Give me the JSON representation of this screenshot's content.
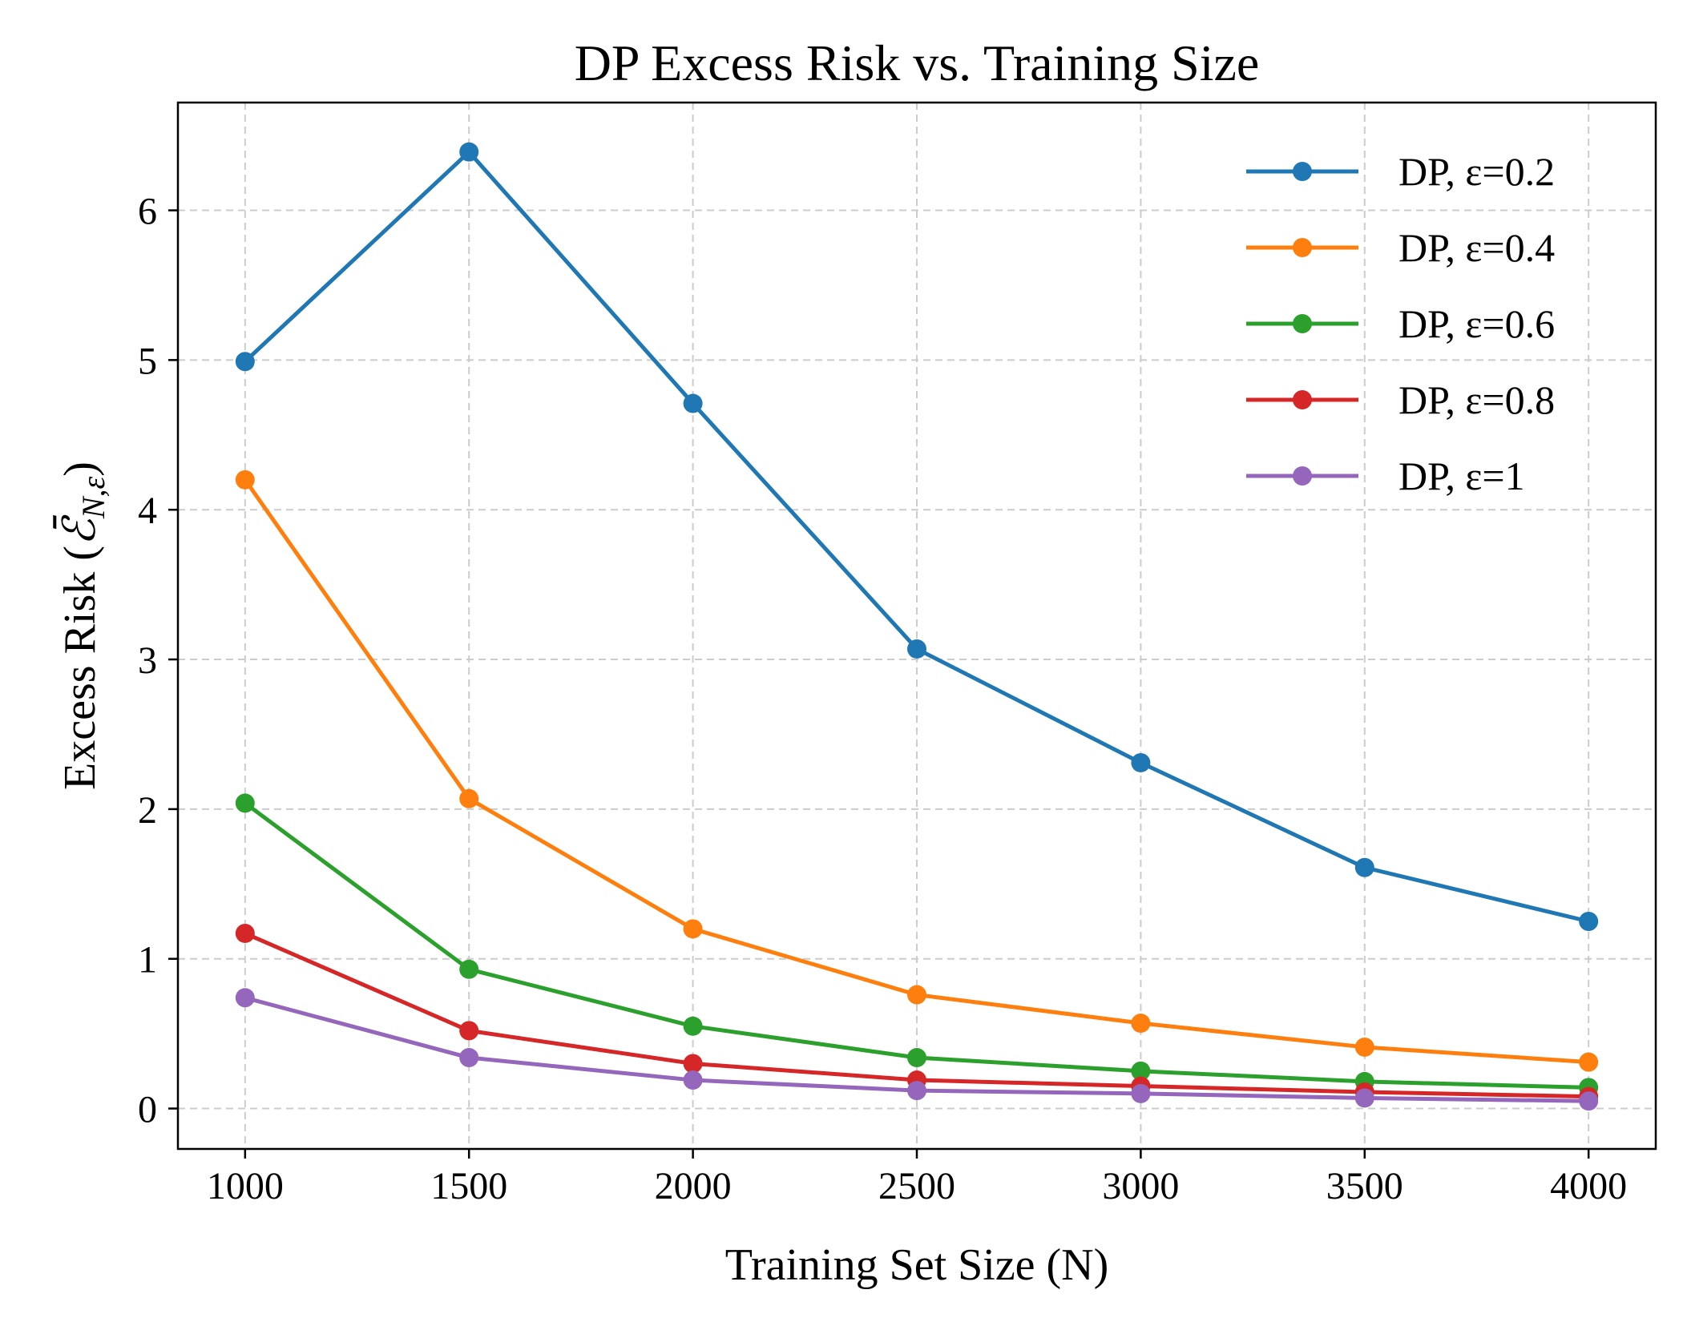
{
  "chart_data": {
    "type": "line",
    "title": "DP Excess Risk vs. Training Size",
    "xlabel": "Training Set Size (N)",
    "ylabel": "Excess Risk (",
    "ylabel_math": "ℰ̄",
    "ylabel_sub": "N,ε",
    "ylabel_close": ")",
    "x": [
      1000,
      1500,
      2000,
      2500,
      3000,
      3500,
      4000
    ],
    "xticks": [
      1000,
      1500,
      2000,
      2500,
      3000,
      3500,
      4000
    ],
    "yticks": [
      0,
      1,
      2,
      3,
      4,
      5,
      6
    ],
    "xlim": [
      850,
      4150
    ],
    "ylim": [
      -0.27,
      6.72
    ],
    "grid": true,
    "legend_position": "top-right",
    "series": [
      {
        "name": "DP, ε=0.2",
        "color": "#1f77b4",
        "values": [
          4.99,
          6.39,
          4.71,
          3.07,
          2.31,
          1.61,
          1.25
        ]
      },
      {
        "name": "DP, ε=0.4",
        "color": "#ff7f0e",
        "values": [
          4.2,
          2.07,
          1.2,
          0.76,
          0.57,
          0.41,
          0.31
        ]
      },
      {
        "name": "DP, ε=0.6",
        "color": "#2ca02c",
        "values": [
          2.04,
          0.93,
          0.55,
          0.34,
          0.25,
          0.18,
          0.14
        ]
      },
      {
        "name": "DP, ε=0.8",
        "color": "#d62728",
        "values": [
          1.17,
          0.52,
          0.3,
          0.19,
          0.15,
          0.11,
          0.08
        ]
      },
      {
        "name": "DP, ε=1",
        "color": "#9467bd",
        "values": [
          0.74,
          0.34,
          0.19,
          0.12,
          0.1,
          0.07,
          0.05
        ]
      }
    ]
  }
}
